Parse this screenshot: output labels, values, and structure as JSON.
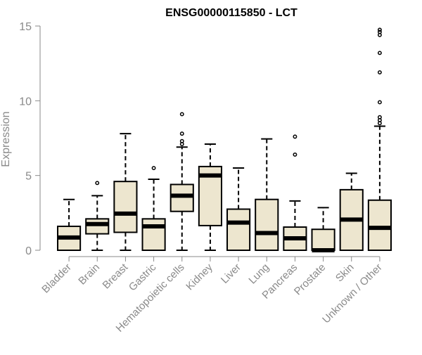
{
  "chart_data": {
    "type": "boxplot",
    "title": "ENSG00000115850 - LCT",
    "ylabel": "Expression",
    "xlabel": "",
    "ylim": [
      0,
      15
    ],
    "yticks": [
      0,
      5,
      10,
      15
    ],
    "grid": false,
    "box_fill": "#ede6cf",
    "box_stroke": "#000000",
    "axis_color": "#8a8a8a",
    "categories": [
      "Bladder",
      "Brain",
      "Breast",
      "Gastric",
      "Hematopoietic cells",
      "Kidney",
      "Liver",
      "Lung",
      "Pancreas",
      "Prostate",
      "Skin",
      "Unknown / Other"
    ],
    "boxes": [
      {
        "whisker_low": 0,
        "q1": 0,
        "median": 0.85,
        "q3": 1.6,
        "whisker_high": 3.4,
        "outliers": []
      },
      {
        "whisker_low": 0,
        "q1": 1.1,
        "median": 1.75,
        "q3": 2.1,
        "whisker_high": 3.65,
        "outliers": [
          4.5
        ]
      },
      {
        "whisker_low": 0,
        "q1": 1.2,
        "median": 2.45,
        "q3": 4.6,
        "whisker_high": 7.8,
        "outliers": []
      },
      {
        "whisker_low": 0,
        "q1": 0,
        "median": 1.6,
        "q3": 2.1,
        "whisker_high": 4.75,
        "outliers": [
          5.5
        ]
      },
      {
        "whisker_low": 0,
        "q1": 2.6,
        "median": 3.65,
        "q3": 4.4,
        "whisker_high": 6.9,
        "outliers": [
          7.1,
          7.3,
          7.8,
          9.1
        ]
      },
      {
        "whisker_low": 0,
        "q1": 1.65,
        "median": 5.0,
        "q3": 5.6,
        "whisker_high": 7.1,
        "outliers": []
      },
      {
        "whisker_low": 0,
        "q1": 0,
        "median": 1.85,
        "q3": 2.75,
        "whisker_high": 5.5,
        "outliers": []
      },
      {
        "whisker_low": 0,
        "q1": 0,
        "median": 1.15,
        "q3": 3.4,
        "whisker_high": 7.45,
        "outliers": []
      },
      {
        "whisker_low": 0,
        "q1": 0,
        "median": 0.8,
        "q3": 1.55,
        "whisker_high": 3.3,
        "outliers": [
          6.4,
          7.6
        ]
      },
      {
        "whisker_low": 0,
        "q1": 0,
        "median": 0.0,
        "q3": 1.4,
        "whisker_high": 2.85,
        "outliers": []
      },
      {
        "whisker_low": 0,
        "q1": 0,
        "median": 2.05,
        "q3": 4.05,
        "whisker_high": 5.15,
        "outliers": []
      },
      {
        "whisker_low": 0,
        "q1": 0,
        "median": 1.5,
        "q3": 3.35,
        "whisker_high": 8.3,
        "outliers": [
          8.5,
          8.7,
          8.9,
          9.9,
          11.9,
          13.2,
          14.4,
          14.6,
          14.75
        ]
      }
    ]
  }
}
